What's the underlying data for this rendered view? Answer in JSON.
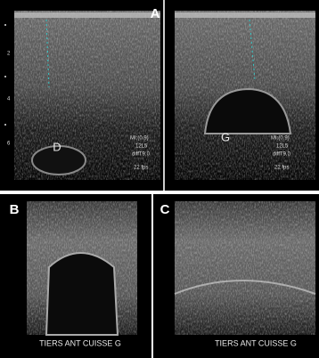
{
  "panels": [
    {
      "label": "A",
      "depth_scale": [
        "2",
        "4",
        "6"
      ],
      "images": [
        {
          "side_label": "D",
          "mi": "MI:(0.9)",
          "probe": "12L5",
          "mode": "diffT9.0",
          "fps": "22 fps"
        },
        {
          "side_label": "G",
          "mi": "MI:(0.9)",
          "probe": "12L5",
          "mode": "diffT9.0",
          "fps": "22 fps"
        }
      ]
    },
    {
      "label": "B",
      "caption": "TIERS ANT CUISSE G"
    },
    {
      "label": "C",
      "caption": "TIERS ANT CUISSE G"
    }
  ]
}
